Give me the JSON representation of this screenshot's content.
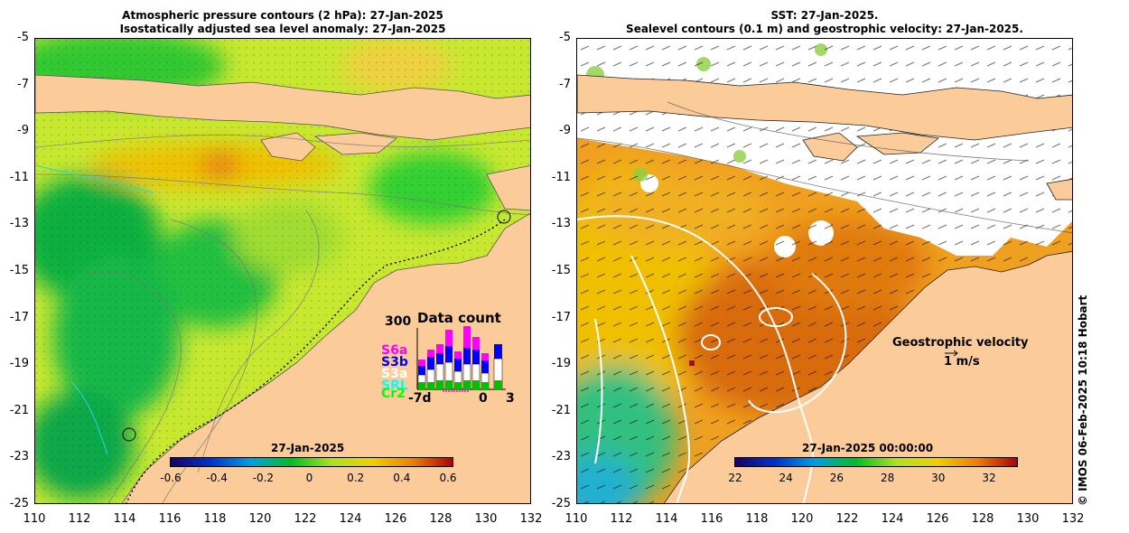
{
  "left": {
    "title_line1": "Atmospheric pressure contours (2 hPa): 27-Jan-2025",
    "title_line2": "Isostatically adjusted sea level anomaly: 27-Jan-2025",
    "colorbar": {
      "label": "27-Jan-2025",
      "ticks": [
        "-0.6",
        "-0.4",
        "-0.2",
        "0",
        "0.2",
        "0.4",
        "0.6"
      ],
      "colors": [
        "#1a0066",
        "#0033cc",
        "#00a0e0",
        "#00c020",
        "#b0e020",
        "#f0d000",
        "#f08000",
        "#b00000"
      ]
    },
    "data_count": {
      "title": "Data count",
      "max_label": "300",
      "x_labels": [
        "-7d",
        "0",
        "3"
      ],
      "satellites": [
        {
          "name": "S6a",
          "color": "#ff00ff"
        },
        {
          "name": "S3b",
          "color": "#0000ff"
        },
        {
          "name": "S3a",
          "color": "#ffffff"
        },
        {
          "name": "SRL",
          "color": "#00ffff"
        },
        {
          "name": "Cr2",
          "color": "#00ff00"
        }
      ]
    }
  },
  "right": {
    "title_line1": "SST: 27-Jan-2025.",
    "title_line2": "Sealevel contours (0.1 m) and geostrophic velocity: 27-Jan-2025.",
    "colorbar": {
      "label": "27-Jan-2025 00:00:00",
      "ticks": [
        "22",
        "24",
        "26",
        "28",
        "30",
        "32"
      ],
      "colors": [
        "#1a0066",
        "#0033cc",
        "#00a0e0",
        "#00c020",
        "#b0e020",
        "#f0d000",
        "#f08000",
        "#b00000"
      ]
    },
    "velocity_label": "Geostrophic velocity",
    "velocity_scale": "1 m/s"
  },
  "axes": {
    "lat_labels": [
      "-5",
      "-7",
      "-9",
      "-11",
      "-13",
      "-15",
      "-17",
      "-19",
      "-21",
      "-23",
      "-25"
    ],
    "lon_labels": [
      "110",
      "112",
      "114",
      "116",
      "118",
      "120",
      "122",
      "124",
      "126",
      "128",
      "130",
      "132"
    ]
  },
  "credit": "© IMOS 06-Feb-2025 10:18 Hobart"
}
